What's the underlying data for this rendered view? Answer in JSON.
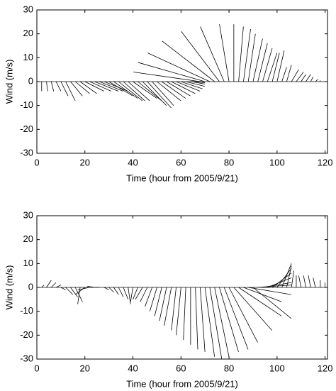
{
  "chart_data": [
    {
      "type": "stick",
      "color": "#000000",
      "xlabel": "Time (hour from 2005/9/21)",
      "ylabel": "Wind (m/s)",
      "xlim": [
        0,
        121
      ],
      "ylim": [
        -30,
        30
      ],
      "xticks": [
        0,
        20,
        40,
        60,
        80,
        100,
        120
      ],
      "yticks": [
        -30,
        -20,
        -10,
        0,
        10,
        20,
        30
      ],
      "x": [
        0,
        2,
        4,
        6,
        8,
        10,
        12,
        14,
        16,
        18,
        20,
        22,
        24,
        26,
        28,
        30,
        32,
        34,
        36,
        38,
        40,
        42,
        44,
        46,
        48,
        50,
        52,
        54,
        56,
        58,
        60,
        62,
        64,
        66,
        68,
        70,
        72,
        74,
        76,
        78,
        80,
        82,
        84,
        86,
        88,
        90,
        92,
        94,
        96,
        98,
        100,
        102,
        104,
        106,
        108,
        110,
        112,
        114,
        116,
        118,
        120
      ],
      "u": [
        0,
        0,
        0.5,
        1,
        2,
        3,
        4,
        5,
        6,
        7,
        8,
        9,
        10,
        10,
        10,
        10,
        10,
        10,
        9,
        9,
        10,
        10,
        10,
        10,
        9,
        10,
        10,
        10,
        10,
        10,
        9,
        8,
        6,
        4,
        -28,
        -28,
        -26,
        -22,
        -16,
        -10,
        -4,
        0,
        2,
        3,
        3,
        4,
        4,
        4,
        4,
        3,
        3,
        2,
        2,
        3,
        3,
        2,
        2,
        1,
        1,
        0,
        0
      ],
      "v": [
        -4,
        -4,
        -4,
        -4,
        -4,
        -6,
        -8,
        -6,
        -5,
        -5,
        -4,
        -4,
        -4,
        -4,
        -4,
        -6,
        -7,
        -8,
        -8,
        -8,
        -7,
        -8,
        -10,
        -11,
        -10,
        -8,
        -7,
        -6,
        -5,
        -4,
        -3,
        -2,
        -1,
        -0.5,
        4,
        8,
        12,
        17,
        21,
        23,
        24,
        24,
        23,
        22,
        20,
        18,
        16,
        14,
        12,
        12,
        13,
        6,
        7,
        5,
        4,
        3,
        3,
        2,
        1,
        0.5,
        0
      ]
    },
    {
      "type": "stick",
      "color": "#000000",
      "xlabel": "Time (hour from 2005/9/21)",
      "ylabel": "Wind (m/s)",
      "xlim": [
        0,
        121
      ],
      "ylim": [
        -30,
        30
      ],
      "xticks": [
        0,
        20,
        40,
        60,
        80,
        100,
        120
      ],
      "yticks": [
        -30,
        -20,
        -10,
        0,
        10,
        20,
        30
      ],
      "x": [
        0,
        2,
        4,
        6,
        8,
        10,
        12,
        14,
        16,
        18,
        20,
        22,
        24,
        26,
        28,
        30,
        32,
        34,
        36,
        38,
        40,
        42,
        44,
        46,
        48,
        50,
        52,
        54,
        56,
        58,
        60,
        62,
        64,
        66,
        68,
        70,
        72,
        74,
        76,
        78,
        80,
        82,
        84,
        86,
        88,
        90,
        92,
        94,
        96,
        98,
        100,
        102,
        104,
        106,
        108,
        110,
        112,
        114,
        116,
        118,
        120
      ],
      "u": [
        0,
        1,
        2,
        2,
        2,
        2,
        3,
        3,
        3,
        -1,
        -4,
        -5,
        -3,
        -2,
        2,
        2,
        2,
        2,
        2,
        1,
        -1,
        -2,
        -3,
        -3,
        -3,
        -3,
        -3,
        -3,
        -3,
        -2,
        -2,
        -1,
        0,
        1,
        2,
        4,
        5,
        6,
        8,
        10,
        12,
        16,
        18,
        16,
        18,
        16,
        14,
        12,
        10,
        8,
        6,
        4,
        2,
        1,
        0,
        -1,
        -1,
        -1,
        -1,
        0,
        0
      ],
      "v": [
        0,
        1,
        3,
        2,
        1,
        -1,
        -3,
        -4,
        -6,
        -7,
        -3,
        -1,
        0.5,
        0,
        -1,
        -2,
        -3,
        -4,
        -5,
        -7,
        -6,
        -5,
        -5,
        -6,
        -8,
        -10,
        -12,
        -14,
        -16,
        -18,
        -20,
        -22,
        -24,
        -26,
        -27,
        -29,
        -30,
        -29,
        -27,
        -26,
        -23,
        -18,
        -12,
        -6,
        -3,
        -13,
        1,
        2,
        4,
        6,
        8,
        10,
        9,
        7,
        5,
        5,
        5,
        5,
        4,
        3,
        2
      ]
    }
  ]
}
